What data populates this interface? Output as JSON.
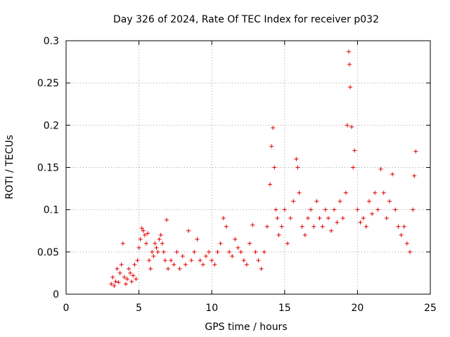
{
  "chart_data": {
    "type": "scatter",
    "title": "Day 326 of 2024, Rate Of TEC Index for receiver p032",
    "xlabel": "GPS time / hours",
    "ylabel": "ROTI / TECUs",
    "xlim": [
      0,
      25
    ],
    "ylim": [
      0,
      0.3
    ],
    "xticks": [
      0,
      5,
      10,
      15,
      20,
      25
    ],
    "yticks": [
      0,
      0.05,
      0.1,
      0.15,
      0.2,
      0.25,
      0.3
    ],
    "xtick_labels": [
      "0",
      "5",
      "10",
      "15",
      "20",
      "25"
    ],
    "ytick_labels": [
      "0",
      "0.05",
      "0.1",
      "0.15",
      "0.2",
      "0.25",
      "0.3"
    ],
    "grid": true,
    "legend": "none",
    "marker": "plus",
    "series_color": "#e00000",
    "points": [
      [
        3.1,
        0.012
      ],
      [
        3.2,
        0.02
      ],
      [
        3.3,
        0.01
      ],
      [
        3.4,
        0.015
      ],
      [
        3.5,
        0.03
      ],
      [
        3.6,
        0.014
      ],
      [
        3.7,
        0.025
      ],
      [
        3.8,
        0.035
      ],
      [
        3.9,
        0.06
      ],
      [
        4.0,
        0.02
      ],
      [
        4.1,
        0.012
      ],
      [
        4.2,
        0.018
      ],
      [
        4.3,
        0.03
      ],
      [
        4.4,
        0.025
      ],
      [
        4.5,
        0.015
      ],
      [
        4.6,
        0.022
      ],
      [
        4.7,
        0.035
      ],
      [
        4.8,
        0.018
      ],
      [
        4.9,
        0.04
      ],
      [
        5.0,
        0.055
      ],
      [
        5.1,
        0.065
      ],
      [
        5.2,
        0.078
      ],
      [
        5.3,
        0.075
      ],
      [
        5.4,
        0.07
      ],
      [
        5.5,
        0.06
      ],
      [
        5.6,
        0.072
      ],
      [
        5.7,
        0.04
      ],
      [
        5.8,
        0.03
      ],
      [
        5.9,
        0.05
      ],
      [
        6.0,
        0.045
      ],
      [
        6.1,
        0.06
      ],
      [
        6.2,
        0.055
      ],
      [
        6.3,
        0.05
      ],
      [
        6.4,
        0.065
      ],
      [
        6.5,
        0.07
      ],
      [
        6.6,
        0.06
      ],
      [
        6.7,
        0.05
      ],
      [
        6.8,
        0.04
      ],
      [
        6.9,
        0.088
      ],
      [
        7.0,
        0.03
      ],
      [
        7.2,
        0.04
      ],
      [
        7.4,
        0.035
      ],
      [
        7.6,
        0.05
      ],
      [
        7.8,
        0.03
      ],
      [
        8.0,
        0.045
      ],
      [
        8.2,
        0.035
      ],
      [
        8.4,
        0.075
      ],
      [
        8.6,
        0.04
      ],
      [
        8.8,
        0.05
      ],
      [
        9.0,
        0.065
      ],
      [
        9.2,
        0.04
      ],
      [
        9.4,
        0.035
      ],
      [
        9.6,
        0.045
      ],
      [
        9.8,
        0.05
      ],
      [
        10.0,
        0.04
      ],
      [
        10.2,
        0.035
      ],
      [
        10.4,
        0.05
      ],
      [
        10.6,
        0.06
      ],
      [
        10.8,
        0.09
      ],
      [
        11.0,
        0.08
      ],
      [
        11.2,
        0.05
      ],
      [
        11.4,
        0.045
      ],
      [
        11.6,
        0.065
      ],
      [
        11.8,
        0.055
      ],
      [
        12.0,
        0.05
      ],
      [
        12.2,
        0.04
      ],
      [
        12.4,
        0.035
      ],
      [
        12.6,
        0.06
      ],
      [
        12.8,
        0.082
      ],
      [
        13.0,
        0.05
      ],
      [
        13.2,
        0.04
      ],
      [
        13.4,
        0.03
      ],
      [
        13.6,
        0.05
      ],
      [
        13.8,
        0.08
      ],
      [
        14.0,
        0.13
      ],
      [
        14.1,
        0.175
      ],
      [
        14.2,
        0.197
      ],
      [
        14.3,
        0.15
      ],
      [
        14.4,
        0.1
      ],
      [
        14.5,
        0.09
      ],
      [
        14.6,
        0.07
      ],
      [
        14.8,
        0.08
      ],
      [
        15.0,
        0.1
      ],
      [
        15.2,
        0.06
      ],
      [
        15.4,
        0.09
      ],
      [
        15.6,
        0.11
      ],
      [
        15.8,
        0.16
      ],
      [
        15.9,
        0.15
      ],
      [
        16.0,
        0.12
      ],
      [
        16.2,
        0.08
      ],
      [
        16.4,
        0.07
      ],
      [
        16.6,
        0.09
      ],
      [
        16.8,
        0.1
      ],
      [
        17.0,
        0.08
      ],
      [
        17.2,
        0.11
      ],
      [
        17.4,
        0.09
      ],
      [
        17.6,
        0.08
      ],
      [
        17.8,
        0.1
      ],
      [
        18.0,
        0.09
      ],
      [
        18.2,
        0.075
      ],
      [
        18.4,
        0.1
      ],
      [
        18.6,
        0.085
      ],
      [
        18.8,
        0.11
      ],
      [
        19.0,
        0.09
      ],
      [
        19.2,
        0.12
      ],
      [
        19.3,
        0.2
      ],
      [
        19.4,
        0.287
      ],
      [
        19.45,
        0.272
      ],
      [
        19.5,
        0.245
      ],
      [
        19.6,
        0.198
      ],
      [
        19.7,
        0.15
      ],
      [
        19.8,
        0.17
      ],
      [
        20.0,
        0.1
      ],
      [
        20.2,
        0.085
      ],
      [
        20.4,
        0.09
      ],
      [
        20.6,
        0.08
      ],
      [
        20.8,
        0.11
      ],
      [
        21.0,
        0.095
      ],
      [
        21.2,
        0.12
      ],
      [
        21.4,
        0.1
      ],
      [
        21.6,
        0.148
      ],
      [
        21.8,
        0.12
      ],
      [
        22.0,
        0.09
      ],
      [
        22.2,
        0.11
      ],
      [
        22.4,
        0.142
      ],
      [
        22.6,
        0.1
      ],
      [
        22.8,
        0.08
      ],
      [
        23.0,
        0.07
      ],
      [
        23.2,
        0.08
      ],
      [
        23.4,
        0.06
      ],
      [
        23.6,
        0.05
      ],
      [
        23.8,
        0.1
      ],
      [
        23.9,
        0.14
      ],
      [
        24.0,
        0.169
      ]
    ]
  }
}
